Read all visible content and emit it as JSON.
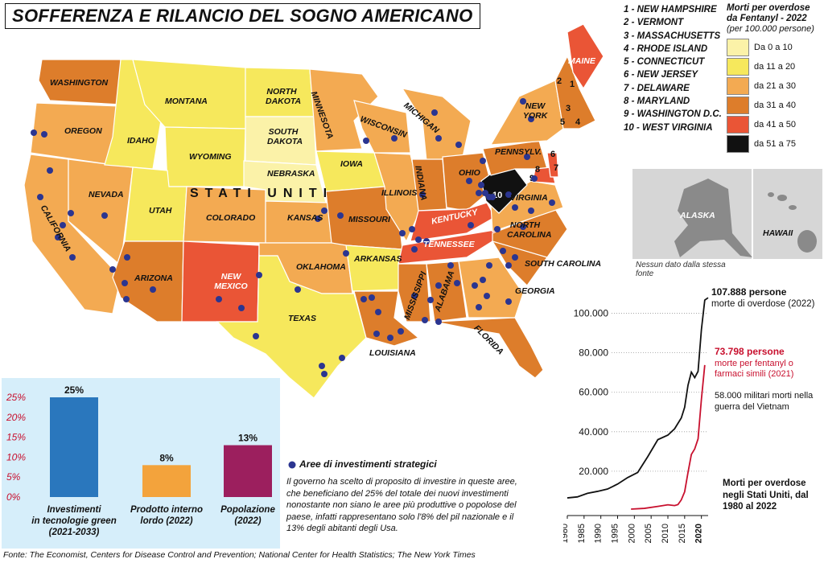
{
  "title": "SOFFERENZA E RILANCIO DEL SOGNO AMERICANO",
  "country_label": "STATI UNITI",
  "small_states": [
    "1 - NEW HAMPSHIRE",
    "2 - VERMONT",
    "3 - MASSACHUSETTS",
    "4 - RHODE ISLAND",
    "5 - CONNECTICUT",
    "6 - NEW JERSEY",
    "7 - DELAWARE",
    "8 - MARYLAND",
    "9 - WASHINGTON D.C.",
    "10 - WEST VIRGINIA"
  ],
  "legend": {
    "title": "Morti per overdose da Fentanyl - 2022",
    "subtitle": "(per 100.000 persone)",
    "items": [
      {
        "label": "Da 0 a 10",
        "color": "#fbf2a8"
      },
      {
        "label": "da 11 a 20",
        "color": "#f6e85c"
      },
      {
        "label": "da 21 a 30",
        "color": "#f3aa52"
      },
      {
        "label": "da 31 a 40",
        "color": "#dd7d2b"
      },
      {
        "label": "da 41 a 50",
        "color": "#ea5536"
      },
      {
        "label": "da 51 a 75",
        "color": "#111111"
      }
    ]
  },
  "state_labels": [
    "WASHINGTON",
    "OREGON",
    "CALIFORNIA",
    "NEVADA",
    "IDAHO",
    "MONTANA",
    "WYOMING",
    "UTAH",
    "ARIZONA",
    "COLORADO",
    "NEW MEXICO",
    "NORTH DAKOTA",
    "SOUTH DAKOTA",
    "NEBRASKA",
    "KANSAS",
    "OKLAHOMA",
    "TEXAS",
    "MINNESOTA",
    "IOWA",
    "MISSOURI",
    "ARKANSAS",
    "LOUISIANA",
    "WISCONSIN",
    "ILLINOIS",
    "MICHIGAN",
    "INDIANA",
    "OHIO",
    "KENTUCKY",
    "TENNESSEE",
    "MISSISSIPPI",
    "ALABAMA",
    "GEORGIA",
    "FLORIDA",
    "SOUTH CAROLINA",
    "NORTH CAROLINA",
    "VIRGINIA",
    "PENNSYLV.",
    "NEW YORK",
    "MAINE",
    "ALASKA",
    "HAWAII"
  ],
  "no_data_note": "Nessun dato dalla stessa fonte",
  "bar_chart": {
    "chart_data": {
      "type": "bar",
      "categories": [
        "Investimenti in tecnologie green (2021-2033)",
        "Prodotto interno lordo (2022)",
        "Popolazione (2022)"
      ],
      "values": [
        25,
        8,
        13
      ],
      "value_labels": [
        "25%",
        "8%",
        "13%"
      ],
      "yticks": [
        "25%",
        "20%",
        "15%",
        "10%",
        "5%",
        "0%"
      ],
      "ylim": [
        0,
        25
      ],
      "colors": [
        "#2a77bd",
        "#f3a33c",
        "#9c1f5e"
      ]
    }
  },
  "investments": {
    "title": "Aree di investimenti strategici",
    "note": "Il governo ha scelto di proposito di investire in queste aree, che beneficiano del 25% del totale dei nuovi investimenti nonostante non siano le aree più produttive o popolose del paese, infatti rappresentano solo l'8% del pil nazionale e il 13% degli abitanti degli Usa."
  },
  "line_chart": {
    "chart_data": {
      "type": "line",
      "x": [
        1980,
        1985,
        1990,
        1995,
        2000,
        2005,
        2010,
        2015,
        2020
      ],
      "xticks": [
        "1980",
        "1985",
        "1990",
        "1995",
        "2000",
        "2005",
        "2010",
        "2015",
        "2020"
      ],
      "yticks": [
        "20.000",
        "40.000",
        "60.000",
        "80.000",
        "100.000"
      ],
      "ylim": [
        0,
        110000
      ],
      "series": [
        {
          "name": "Morti per overdose",
          "color": "#111111",
          "x": [
            1980,
            1983,
            1986,
            1989,
            1992,
            1995,
            1998,
            2001,
            2004,
            2007,
            2010,
            2012,
            2014,
            2015,
            2016,
            2017,
            2018,
            2019,
            2020,
            2021,
            2022
          ],
          "values": [
            6500,
            7000,
            8800,
            9800,
            11000,
            13500,
            16800,
            19400,
            27400,
            36000,
            38300,
            41500,
            47000,
            52400,
            63600,
            70200,
            67400,
            70600,
            91800,
            106700,
            107888
          ]
        },
        {
          "name": "Morti per fentanyl o farmaci simili",
          "color": "#c8102e",
          "x": [
            1999,
            2003,
            2007,
            2010,
            2012,
            2013,
            2014,
            2015,
            2016,
            2017,
            2018,
            2019,
            2020,
            2021
          ],
          "values": [
            800,
            1200,
            2200,
            3000,
            2600,
            3100,
            5500,
            9600,
            19400,
            28500,
            31300,
            36400,
            56500,
            73798
          ]
        }
      ]
    },
    "annotations": {
      "total_value": "107.888 persone",
      "total_text": "morte di overdose (2022)",
      "fent_value": "73.798 persone",
      "fent_text": "morte per fentanyl o farmaci simili (2021)",
      "vietnam_text": "58.000 militari morti nella guerra del Vietnam",
      "caption": "Morti per overdose negli Stati Uniti, dal 1980 al 2022"
    }
  },
  "source": "Fonte: The Economist, Centers for Disease Control and Prevention; National Center for Health Statistics; The New York Times"
}
